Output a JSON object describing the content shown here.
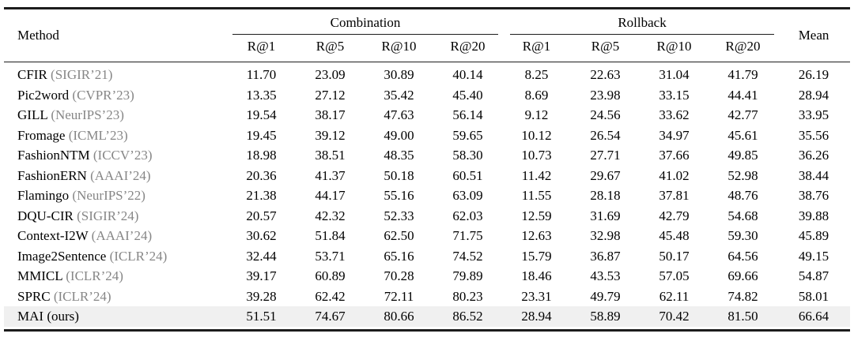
{
  "table": {
    "header": {
      "method": "Method",
      "mean": "Mean",
      "groups": [
        {
          "label": "Combination",
          "subcols": [
            "R@1",
            "R@5",
            "R@10",
            "R@20"
          ]
        },
        {
          "label": "Rollback",
          "subcols": [
            "R@1",
            "R@5",
            "R@10",
            "R@20"
          ]
        }
      ]
    },
    "rows": [
      {
        "method": "CFIR",
        "venue": "(SIGIR’21)",
        "combination": [
          "11.70",
          "23.09",
          "30.89",
          "40.14"
        ],
        "rollback": [
          "8.25",
          "22.63",
          "31.04",
          "41.79"
        ],
        "mean": "26.19",
        "highlight": false
      },
      {
        "method": "Pic2word",
        "venue": "(CVPR’23)",
        "combination": [
          "13.35",
          "27.12",
          "35.42",
          "45.40"
        ],
        "rollback": [
          "8.69",
          "23.98",
          "33.15",
          "44.41"
        ],
        "mean": "28.94",
        "highlight": false
      },
      {
        "method": "GILL",
        "venue": "(NeurIPS’23)",
        "combination": [
          "19.54",
          "38.17",
          "47.63",
          "56.14"
        ],
        "rollback": [
          "9.12",
          "24.56",
          "33.62",
          "42.77"
        ],
        "mean": "33.95",
        "highlight": false
      },
      {
        "method": "Fromage",
        "venue": "(ICML’23)",
        "combination": [
          "19.45",
          "39.12",
          "49.00",
          "59.65"
        ],
        "rollback": [
          "10.12",
          "26.54",
          "34.97",
          "45.61"
        ],
        "mean": "35.56",
        "highlight": false
      },
      {
        "method": "FashionNTM",
        "venue": "(ICCV’23)",
        "combination": [
          "18.98",
          "38.51",
          "48.35",
          "58.30"
        ],
        "rollback": [
          "10.73",
          "27.71",
          "37.66",
          "49.85"
        ],
        "mean": "36.26",
        "highlight": false
      },
      {
        "method": "FashionERN",
        "venue": "(AAAI’24)",
        "combination": [
          "20.36",
          "41.37",
          "50.18",
          "60.51"
        ],
        "rollback": [
          "11.42",
          "29.67",
          "41.02",
          "52.98"
        ],
        "mean": "38.44",
        "highlight": false
      },
      {
        "method": "Flamingo",
        "venue": "(NeurIPS’22)",
        "combination": [
          "21.38",
          "44.17",
          "55.16",
          "63.09"
        ],
        "rollback": [
          "11.55",
          "28.18",
          "37.81",
          "48.76"
        ],
        "mean": "38.76",
        "highlight": false
      },
      {
        "method": "DQU-CIR",
        "venue": "(SIGIR’24)",
        "combination": [
          "20.57",
          "42.32",
          "52.33",
          "62.03"
        ],
        "rollback": [
          "12.59",
          "31.69",
          "42.79",
          "54.68"
        ],
        "mean": "39.88",
        "highlight": false
      },
      {
        "method": "Context-I2W",
        "venue": "(AAAI’24)",
        "combination": [
          "30.62",
          "51.84",
          "62.50",
          "71.75"
        ],
        "rollback": [
          "12.63",
          "32.98",
          "45.48",
          "59.30"
        ],
        "mean": "45.89",
        "highlight": false
      },
      {
        "method": "Image2Sentence",
        "venue": "(ICLR’24)",
        "combination": [
          "32.44",
          "53.71",
          "65.16",
          "74.52"
        ],
        "rollback": [
          "15.79",
          "36.87",
          "50.17",
          "64.56"
        ],
        "mean": "49.15",
        "highlight": false
      },
      {
        "method": "MMICL",
        "venue": "(ICLR’24)",
        "combination": [
          "39.17",
          "60.89",
          "70.28",
          "79.89"
        ],
        "rollback": [
          "18.46",
          "43.53",
          "57.05",
          "69.66"
        ],
        "mean": "54.87",
        "highlight": false
      },
      {
        "method": "SPRC",
        "venue": "(ICLR’24)",
        "combination": [
          "39.28",
          "62.42",
          "72.11",
          "80.23"
        ],
        "rollback": [
          "23.31",
          "49.79",
          "62.11",
          "74.82"
        ],
        "mean": "58.01",
        "highlight": false
      },
      {
        "method": "MAI",
        "venue": "(ours)",
        "combination": [
          "51.51",
          "74.67",
          "80.66",
          "86.52"
        ],
        "rollback": [
          "28.94",
          "58.89",
          "70.42",
          "81.50"
        ],
        "mean": "66.64",
        "highlight": true
      }
    ]
  }
}
